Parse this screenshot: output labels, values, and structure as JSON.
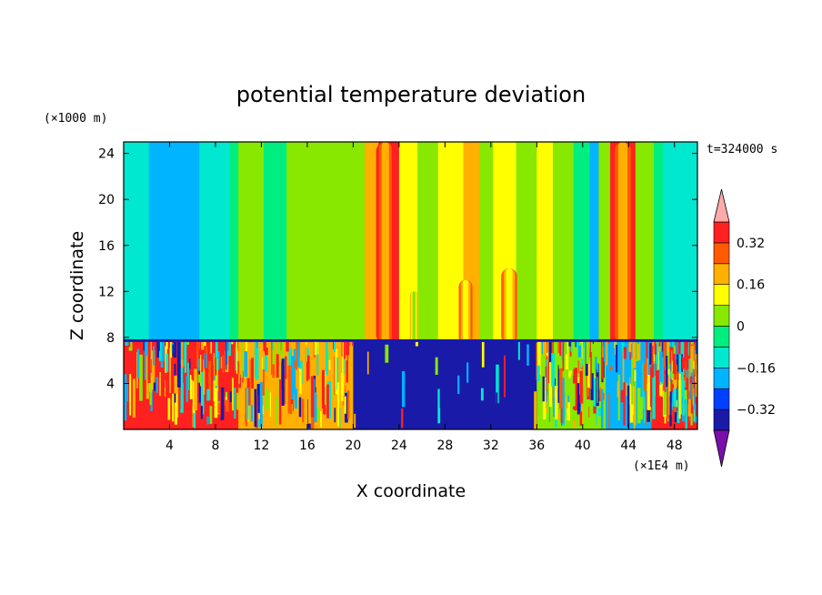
{
  "chart_data": {
    "type": "heatmap",
    "title": "potential temperature deviation",
    "xlabel": "X coordinate",
    "ylabel": "Z coordinate",
    "x_unit": "(×1E4 m)",
    "y_unit": "(×1000 m)",
    "time_label": "t=324000 s",
    "xlim": [
      0,
      50
    ],
    "ylim": [
      0,
      25
    ],
    "x_ticks": [
      4,
      8,
      12,
      16,
      20,
      24,
      28,
      32,
      36,
      40,
      44,
      48
    ],
    "y_ticks": [
      4,
      8,
      12,
      16,
      20,
      24
    ],
    "colorbar": {
      "levels": [
        -0.4,
        -0.32,
        -0.24,
        -0.16,
        -0.08,
        0,
        0.08,
        0.16,
        0.24,
        0.32,
        0.4
      ],
      "labeled_levels": [
        "0.32",
        "0.16",
        "0",
        "−0.16",
        "−0.32"
      ],
      "labeled_values": [
        0.32,
        0.16,
        0,
        -0.16,
        -0.32
      ],
      "colors": [
        "#7a0ea8",
        "#1a1aa8",
        "#0040ff",
        "#00b4ff",
        "#00e8d0",
        "#00ee80",
        "#88e800",
        "#ffff00",
        "#ffb000",
        "#ff5a00",
        "#ff2020",
        "#ffaaaa"
      ],
      "extend": "both"
    },
    "upper_layer_columns": [
      {
        "x0": 0.0,
        "x1": 2.2,
        "value": -0.12
      },
      {
        "x0": 2.2,
        "x1": 6.6,
        "value": -0.2
      },
      {
        "x0": 6.6,
        "x1": 9.2,
        "value": -0.12
      },
      {
        "x0": 9.2,
        "x1": 10.0,
        "value": -0.04
      },
      {
        "x0": 10.0,
        "x1": 12.2,
        "value": 0.04
      },
      {
        "x0": 12.2,
        "x1": 14.2,
        "value": -0.04
      },
      {
        "x0": 14.2,
        "x1": 18.0,
        "value": 0.04
      },
      {
        "x0": 18.0,
        "x1": 21.0,
        "value": 0.04
      },
      {
        "x0": 21.0,
        "x1": 22.2,
        "value": 0.2
      },
      {
        "x0": 22.2,
        "x1": 24.0,
        "value": 0.36
      },
      {
        "x0": 24.0,
        "x1": 25.6,
        "value": 0.12
      },
      {
        "x0": 25.6,
        "x1": 27.4,
        "value": 0.04
      },
      {
        "x0": 27.4,
        "x1": 29.6,
        "value": 0.12
      },
      {
        "x0": 29.6,
        "x1": 31.0,
        "value": 0.2
      },
      {
        "x0": 31.0,
        "x1": 32.2,
        "value": 0.04
      },
      {
        "x0": 32.2,
        "x1": 34.2,
        "value": 0.12
      },
      {
        "x0": 34.2,
        "x1": 36.0,
        "value": 0.04
      },
      {
        "x0": 36.0,
        "x1": 37.4,
        "value": 0.12
      },
      {
        "x0": 37.4,
        "x1": 39.2,
        "value": 0.04
      },
      {
        "x0": 39.2,
        "x1": 40.6,
        "value": -0.04
      },
      {
        "x0": 40.6,
        "x1": 41.4,
        "value": -0.2
      },
      {
        "x0": 41.4,
        "x1": 42.4,
        "value": 0.04
      },
      {
        "x0": 42.4,
        "x1": 44.6,
        "value": 0.36
      },
      {
        "x0": 44.6,
        "x1": 46.2,
        "value": 0.04
      },
      {
        "x0": 46.2,
        "x1": 47.0,
        "value": -0.04
      },
      {
        "x0": 47.0,
        "x1": 50.0,
        "value": -0.12
      }
    ],
    "plumes": [
      {
        "x": 22.8,
        "halfwidth": 0.8,
        "zbase": 7.6,
        "ztop": 25,
        "value": 0.36
      },
      {
        "x": 25.3,
        "halfwidth": 0.35,
        "zbase": 7.6,
        "ztop": 12,
        "value": 0.2
      },
      {
        "x": 29.8,
        "halfwidth": 0.6,
        "zbase": 7.6,
        "ztop": 13,
        "value": 0.28
      },
      {
        "x": 33.6,
        "halfwidth": 0.7,
        "zbase": 7.6,
        "ztop": 14,
        "value": 0.28
      },
      {
        "x": 43.5,
        "halfwidth": 1.0,
        "zbase": 7.6,
        "ztop": 25,
        "value": 0.36
      }
    ],
    "boundary_layer_top": 7.6,
    "lower_layer_segments": [
      {
        "x0": 0.0,
        "x1": 10.0,
        "value": 0.36,
        "turbulence": "high"
      },
      {
        "x0": 10.0,
        "x1": 20.0,
        "value": 0.2,
        "turbulence": "high"
      },
      {
        "x0": 20.0,
        "x1": 36.0,
        "value": -0.4,
        "turbulence": "low"
      },
      {
        "x0": 36.0,
        "x1": 42.0,
        "value": 0.04,
        "turbulence": "high"
      },
      {
        "x0": 42.0,
        "x1": 46.0,
        "value": -0.2,
        "turbulence": "medium"
      },
      {
        "x0": 46.0,
        "x1": 50.0,
        "value": 0.36,
        "turbulence": "high"
      }
    ]
  }
}
